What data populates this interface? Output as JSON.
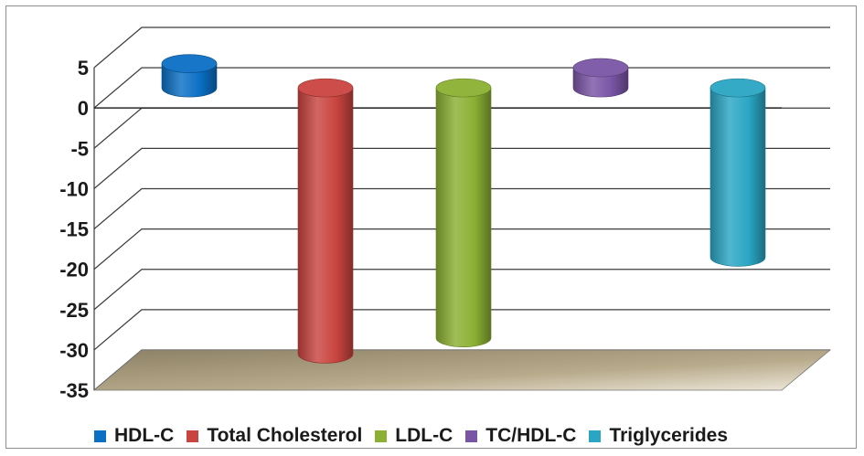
{
  "chart_data": {
    "type": "bar",
    "style": "3d-cylinder",
    "categories": [
      "HDL-C",
      "Total Cholesterol",
      "LDL-C",
      "TC/HDL-C",
      "Triglycerides"
    ],
    "series": [
      {
        "name": "HDL-C",
        "value": 3.0,
        "color": "#0b6fc4"
      },
      {
        "name": "Total Cholesterol",
        "value": -33,
        "color": "#c9443f"
      },
      {
        "name": "LDL-C",
        "value": -31,
        "color": "#8bb033"
      },
      {
        "name": "TC/HDL-C",
        "value": 2.5,
        "color": "#7a55a6"
      },
      {
        "name": "Triglycerides",
        "value": -21,
        "color": "#2aa6c4"
      }
    ],
    "yticks": [
      "5",
      "0",
      "-5",
      "-10",
      "-15",
      "-20",
      "-25",
      "-30",
      "-35"
    ],
    "ylim": [
      -35,
      5
    ],
    "grid": true,
    "legend_position": "bottom",
    "floor_color": "#b8ab8c"
  }
}
